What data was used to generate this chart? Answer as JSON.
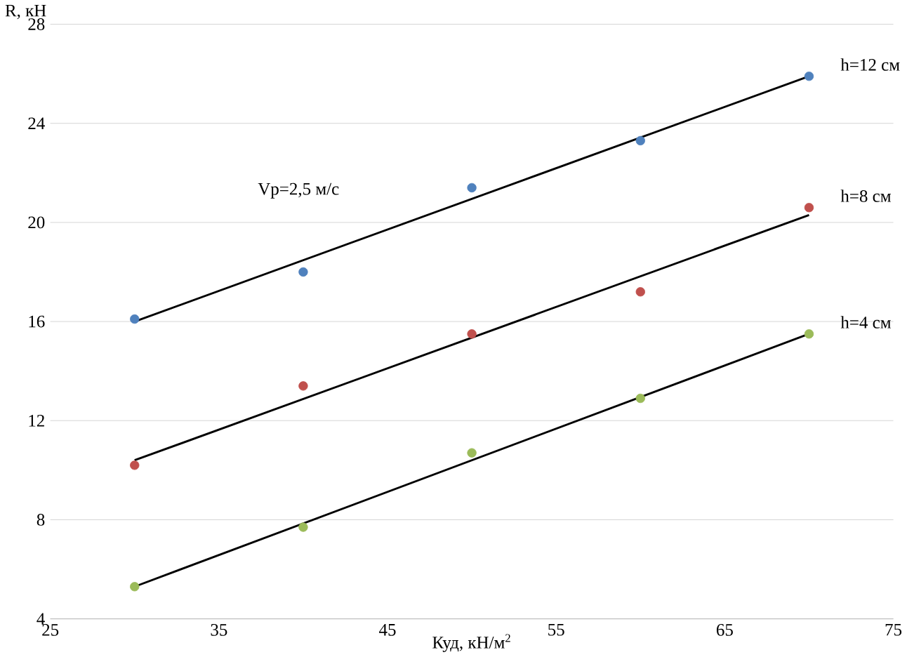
{
  "chart_data": {
    "type": "scatter",
    "xlabel": "Куд, кН/м$^{2}$",
    "ylabel": "R, кН",
    "xlim": [
      25,
      75
    ],
    "xticks": [
      25,
      35,
      45,
      55,
      65,
      75
    ],
    "ylim": [
      4,
      28
    ],
    "yticks": [
      4,
      8,
      12,
      16,
      20,
      24,
      28
    ],
    "grid": "y",
    "annotations": [
      "Vp=2,5 м/с"
    ],
    "series": [
      {
        "name": "h=12 см",
        "marker": "circle",
        "color": "#4f81bd",
        "x": [
          30,
          40,
          50,
          60,
          70
        ],
        "values": [
          16.1,
          18.0,
          21.4,
          23.3,
          25.9
        ]
      },
      {
        "name": "h=8 см",
        "marker": "circle",
        "color": "#c0504d",
        "x": [
          30,
          40,
          50,
          60,
          70
        ],
        "values": [
          10.2,
          13.4,
          15.5,
          17.2,
          20.6
        ]
      },
      {
        "name": "h=4 см",
        "marker": "circle",
        "color": "#9bbb59",
        "x": [
          30,
          40,
          50,
          60,
          70
        ],
        "values": [
          5.3,
          7.7,
          10.7,
          12.9,
          15.5
        ]
      },
      {
        "type": "line",
        "color": "#000000",
        "marker": "none",
        "x": [
          30,
          70
        ],
        "values": [
          16.0,
          25.9
        ]
      },
      {
        "type": "line",
        "color": "#000000",
        "marker": "none",
        "x": [
          30,
          70
        ],
        "values": [
          10.4,
          20.3
        ]
      },
      {
        "type": "line",
        "color": "#000000",
        "marker": "none",
        "x": [
          30,
          70
        ],
        "values": [
          5.3,
          15.5
        ]
      }
    ]
  }
}
